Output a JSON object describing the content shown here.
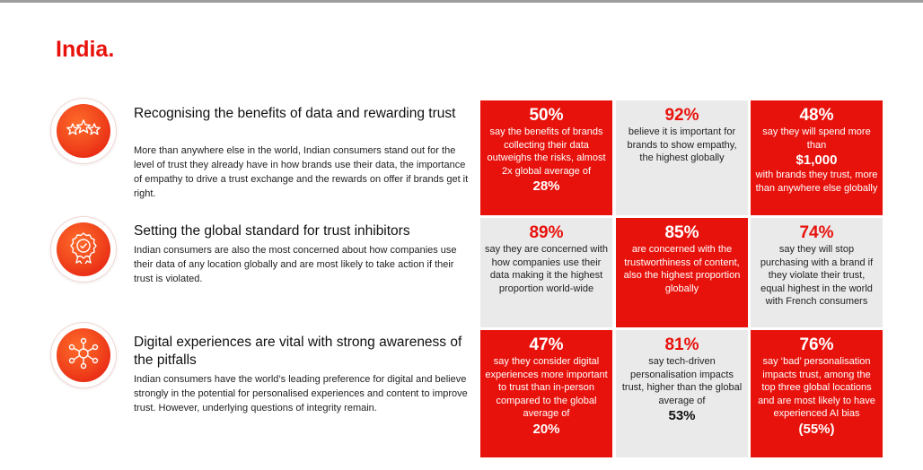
{
  "page": {
    "title": "India."
  },
  "colors": {
    "accent": "#e8120c",
    "grey_cell": "#eaeaea"
  },
  "sections": [
    {
      "icon": "stars-icon",
      "heading": "Recognising the benefits of data and rewarding trust",
      "body": "More than anywhere else in the world, Indian consumers stand out for the level of trust they already have in how brands use their data, the importance of empathy to drive a trust exchange and the rewards on offer if brands get it right."
    },
    {
      "icon": "award-badge-icon",
      "heading": "Setting the global standard for trust inhibitors",
      "body": "Indian consumers are also the most concerned about how companies use their data of any location globally and are most likely to take action if their trust is violated."
    },
    {
      "icon": "network-icon",
      "heading": "Digital experiences are vital with strong awareness of the pitfalls",
      "body": "Indian consumers have the world’s leading preference for digital and believe strongly in the potential for personalised experiences and content to improve trust. However, underlying questions of integrity remain."
    }
  ],
  "stats": [
    {
      "style": "red",
      "value": "50%",
      "text": "say the benefits of brands collecting their data outweighs the risks, almost 2x global average of",
      "highlight": "28%",
      "after": ""
    },
    {
      "style": "grey",
      "value": "92%",
      "text": "believe it is important for brands to show empathy, the highest globally",
      "highlight": "",
      "after": ""
    },
    {
      "style": "red",
      "value": "48%",
      "text": "say they will spend more than",
      "highlight": "$1,000",
      "after": "with brands they trust, more than anywhere else globally"
    },
    {
      "style": "grey",
      "value": "89%",
      "text": "say they are concerned with how companies use their data making it the highest proportion world-wide",
      "highlight": "",
      "after": ""
    },
    {
      "style": "red",
      "value": "85%",
      "text": "are concerned with the trustworthiness of content, also the highest proportion globally",
      "highlight": "",
      "after": ""
    },
    {
      "style": "grey",
      "value": "74%",
      "text": "say they will stop purchasing with a brand if they violate their trust, equal highest in the world with French consumers",
      "highlight": "",
      "after": ""
    },
    {
      "style": "red",
      "value": "47%",
      "text": "say they consider digital experiences more important to trust than in-person compared to the global average of",
      "highlight": "20%",
      "after": ""
    },
    {
      "style": "grey",
      "value": "81%",
      "text": "say tech-driven personalisation impacts trust, higher than the global average of",
      "highlight": "53%",
      "after": ""
    },
    {
      "style": "red",
      "value": "76%",
      "text": "say ‘bad’ personalisation impacts trust, among the top three global locations and are most likely to have experienced AI bias",
      "highlight": "(55%)",
      "after": ""
    }
  ]
}
